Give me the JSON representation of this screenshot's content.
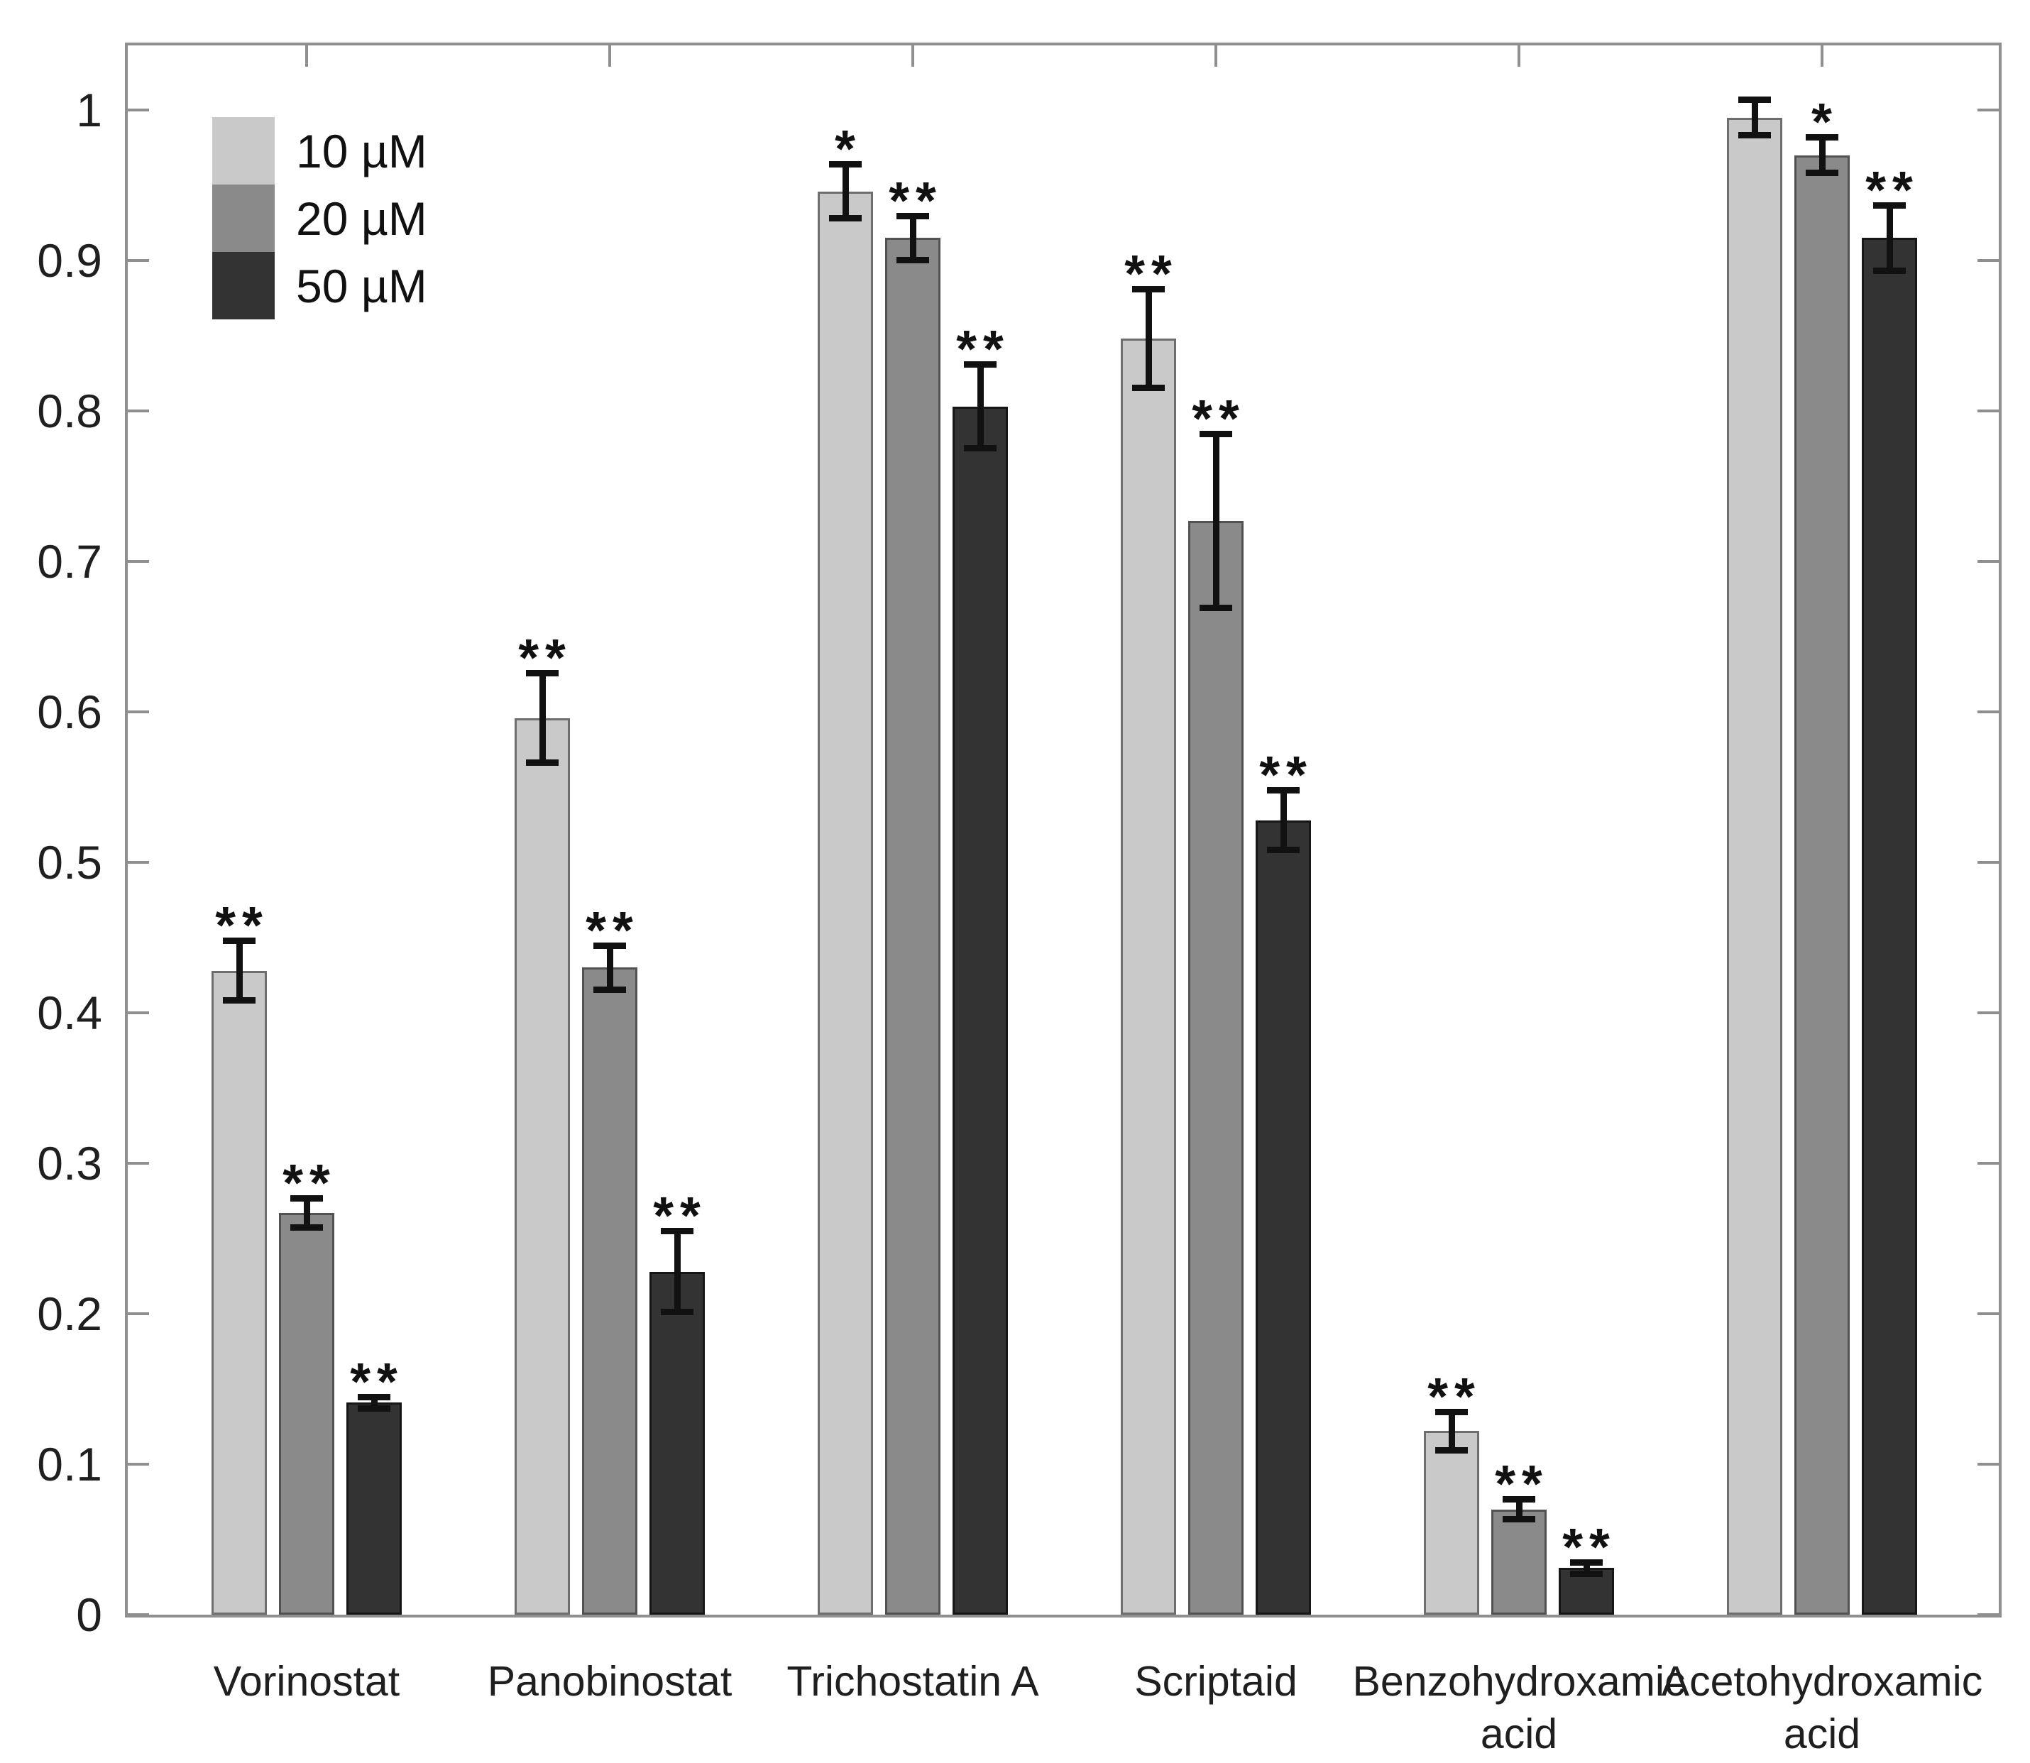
{
  "chart_data": {
    "type": "bar",
    "title": "",
    "xlabel": "",
    "ylabel": "",
    "ylim": [
      0,
      1.043
    ],
    "yticks": {
      "values": [
        0,
        0.1,
        0.2,
        0.3,
        0.4,
        0.5,
        0.6,
        0.7,
        0.8,
        0.9,
        1
      ],
      "labels": [
        "0",
        "0.1",
        "0.2",
        "0.3",
        "0.4",
        "0.5",
        "0.6",
        "0.7",
        "0.8",
        "0.9",
        "1"
      ]
    },
    "grid": false,
    "legend_position": "top-left",
    "error_bars": true,
    "categories": [
      "Vorinostat",
      "Panobinostat",
      "Trichostatin A",
      "Scriptaid",
      "Benzohydroxamic acid",
      "Acetohydroxamic acid"
    ],
    "category_lines": [
      [
        "Vorinostat"
      ],
      [
        "Panobinostat"
      ],
      [
        "Trichostatin A"
      ],
      [
        "Scriptaid"
      ],
      [
        "Benzohydroxamic",
        "acid"
      ],
      [
        "Acetohydroxamic",
        "acid"
      ]
    ],
    "series": [
      {
        "name": "10 µM",
        "color": "#c9c9c9",
        "edge_color": "#6e6e6e",
        "values": [
          0.428,
          0.596,
          0.946,
          0.848,
          0.122,
          0.995
        ],
        "errors": [
          0.02,
          0.03,
          0.018,
          0.033,
          0.013,
          0.012
        ],
        "significance": [
          "**",
          "**",
          "*",
          "**",
          "**",
          ""
        ]
      },
      {
        "name": "20 µM",
        "color": "#8a8a8a",
        "edge_color": "#525252",
        "values": [
          0.267,
          0.43,
          0.915,
          0.727,
          0.07,
          0.97
        ],
        "errors": [
          0.01,
          0.015,
          0.015,
          0.058,
          0.007,
          0.012
        ],
        "significance": [
          "**",
          "**",
          "**",
          "**",
          "**",
          "*"
        ]
      },
      {
        "name": "50 µM",
        "color": "#333333",
        "edge_color": "#161616",
        "values": [
          0.141,
          0.228,
          0.803,
          0.528,
          0.031,
          0.915
        ],
        "errors": [
          0.004,
          0.027,
          0.028,
          0.02,
          0.004,
          0.022
        ],
        "significance": [
          "**",
          "**",
          "**",
          "**",
          "**",
          "**"
        ]
      }
    ]
  }
}
